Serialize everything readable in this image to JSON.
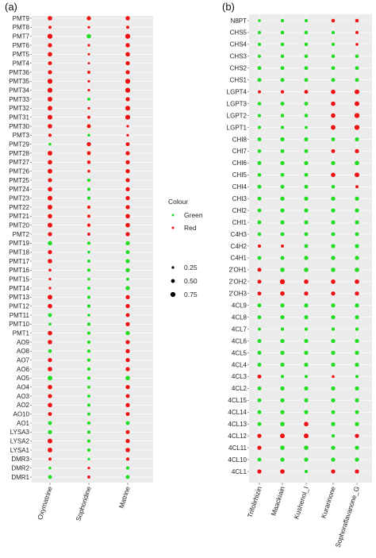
{
  "figure": {
    "panel_a_tag": "(a)",
    "panel_b_tag": "(b)"
  },
  "legend": {
    "colour_title": "Colour",
    "colour_items": [
      {
        "label": "Green",
        "color": "#22dd22"
      },
      {
        "label": "Red",
        "color": "#ee1111"
      }
    ],
    "size_items": [
      {
        "label": "0.25",
        "value": 0.25
      },
      {
        "label": "0.50",
        "value": 0.5
      },
      {
        "label": "0.75",
        "value": 0.75
      }
    ]
  },
  "colors": {
    "panel_bg": "#ebebeb",
    "grid": "#ffffff",
    "green": "#22dd22",
    "red": "#ee1111"
  },
  "chart_data": [
    {
      "type": "scatter",
      "panel": "(a)",
      "xlabel": "",
      "ylabel": "",
      "columns": [
        "Oxymatrine",
        "Sophoridine",
        "Matrine"
      ],
      "rows": [
        "PMT9",
        "PMT8",
        "PMT7",
        "PMT6",
        "PMT5",
        "PMT4",
        "PMT36",
        "PMT35",
        "PMT34",
        "PMT33",
        "PMT32",
        "PMT31",
        "PMT30",
        "PMT3",
        "PMT29",
        "PMT28",
        "PMT27",
        "PMT26",
        "PMT25",
        "PMT24",
        "PMT23",
        "PMT22",
        "PMT21",
        "PMT20",
        "PMT2",
        "PMT19",
        "PMT18",
        "PMT17",
        "PMT16",
        "PMT15",
        "PMT14",
        "PMT13",
        "PMT12",
        "PMT11",
        "PMT10",
        "PMT1",
        "AO9",
        "AO8",
        "AO7",
        "AO6",
        "AO5",
        "AO4",
        "AO3",
        "AO2",
        "AO10",
        "AO1",
        "LYSA3",
        "LYSA2",
        "LYSA1",
        "DMR3",
        "DMR2",
        "DMR1"
      ],
      "colour_codes": [
        "RRR",
        "RRR",
        "RGR",
        "RRR",
        "RRR",
        "RRR",
        "RRR",
        "RRR",
        "RRR",
        "RGR",
        "RRR",
        "RRR",
        "RRR",
        "RGR",
        "GRR",
        "RRR",
        "RRR",
        "RRR",
        "RGR",
        "RGR",
        "RGR",
        "RRR",
        "RRR",
        "RRR",
        "RRR",
        "GGG",
        "RGG",
        "RGG",
        "RGG",
        "RGG",
        "RGG",
        "RGR",
        "RGR",
        "GGR",
        "GGR",
        "RGG",
        "RGR",
        "GGR",
        "RGR",
        "RGR",
        "GGG",
        "RGR",
        "RGR",
        "RGR",
        "RGR",
        "GGG",
        "GGR",
        "RGR",
        "RGR",
        "RGR",
        "GRG",
        "GRG"
      ],
      "sizes": [
        [
          0.65,
          0.6,
          0.62
        ],
        [
          0.4,
          0.3,
          0.4
        ],
        [
          0.75,
          0.65,
          0.75
        ],
        [
          0.6,
          0.3,
          0.62
        ],
        [
          0.65,
          0.25,
          0.65
        ],
        [
          0.55,
          0.25,
          0.6
        ],
        [
          0.6,
          0.4,
          0.6
        ],
        [
          0.75,
          0.3,
          0.75
        ],
        [
          0.75,
          0.3,
          0.75
        ],
        [
          0.7,
          0.4,
          0.6
        ],
        [
          0.7,
          0.3,
          0.72
        ],
        [
          0.7,
          0.4,
          0.72
        ],
        [
          0.65,
          0.55,
          0.3
        ],
        [
          0.45,
          0.35,
          0.3
        ],
        [
          0.35,
          0.6,
          0.55
        ],
        [
          0.7,
          0.55,
          0.6
        ],
        [
          0.65,
          0.5,
          0.6
        ],
        [
          0.7,
          0.35,
          0.6
        ],
        [
          0.6,
          0.45,
          0.6
        ],
        [
          0.65,
          0.45,
          0.6
        ],
        [
          0.7,
          0.45,
          0.6
        ],
        [
          0.7,
          0.45,
          0.6
        ],
        [
          0.65,
          0.4,
          0.65
        ],
        [
          0.7,
          0.45,
          0.65
        ],
        [
          0.6,
          0.4,
          0.6
        ],
        [
          0.65,
          0.45,
          0.6
        ],
        [
          0.6,
          0.35,
          0.55
        ],
        [
          0.65,
          0.4,
          0.6
        ],
        [
          0.35,
          0.45,
          0.6
        ],
        [
          0.3,
          0.35,
          0.4
        ],
        [
          0.3,
          0.4,
          0.6
        ],
        [
          0.7,
          0.45,
          0.6
        ],
        [
          0.65,
          0.45,
          0.6
        ],
        [
          0.55,
          0.35,
          0.55
        ],
        [
          0.35,
          0.45,
          0.6
        ],
        [
          0.65,
          0.45,
          0.6
        ],
        [
          0.65,
          0.45,
          0.6
        ],
        [
          0.5,
          0.45,
          0.6
        ],
        [
          0.6,
          0.45,
          0.6
        ],
        [
          0.65,
          0.45,
          0.6
        ],
        [
          0.7,
          0.45,
          0.65
        ],
        [
          0.65,
          0.4,
          0.6
        ],
        [
          0.6,
          0.4,
          0.55
        ],
        [
          0.65,
          0.45,
          0.6
        ],
        [
          0.55,
          0.4,
          0.55
        ],
        [
          0.55,
          0.45,
          0.55
        ],
        [
          0.6,
          0.45,
          0.55
        ],
        [
          0.7,
          0.45,
          0.6
        ],
        [
          0.7,
          0.45,
          0.65
        ],
        [
          0.4,
          0.3,
          0.45
        ],
        [
          0.35,
          0.3,
          0.45
        ],
        [
          0.55,
          0.4,
          0.55
        ]
      ]
    },
    {
      "type": "scatter",
      "panel": "(b)",
      "xlabel": "",
      "ylabel": "",
      "columns": [
        "Trifolirhizin",
        "Maackiain",
        "Kushenol_I",
        "Kurarinone",
        "Sophoraflavanone_G"
      ],
      "rows": [
        "N8PT",
        "CHS5",
        "CHS4",
        "CHS3",
        "CHS2",
        "CHS1",
        "LGPT4",
        "LGPT3",
        "LGPT2",
        "LGPT1",
        "CHI8",
        "CHI7",
        "CHI6",
        "CHI5",
        "CHI4",
        "CHI3",
        "CHI2",
        "CHI1",
        "C4H3",
        "C4H2",
        "C4H1",
        "2'OH1",
        "2'OH2",
        "2'OH3",
        "4CL9",
        "4CL8",
        "4CL7",
        "4CL6",
        "4CL5",
        "4CL4",
        "4CL3",
        "4CL2",
        "4CL15",
        "4CL14",
        "4CL13",
        "4CL12",
        "4CL11",
        "4CL10",
        "4CL1"
      ],
      "colour_codes": [
        "GGGRR",
        "GGGGR",
        "GGGGR",
        "GGGGG",
        "GGGGG",
        "GGGGG",
        "RRRRR",
        "GGGRR",
        "GGGRR",
        "GGGRR",
        "GGGGG",
        "GGGRR",
        "GGGGG",
        "GGGRR",
        "GGGGR",
        "GGGGG",
        "GGGGG",
        "GGGGG",
        "GGGGG",
        "RRGGG",
        "GGGGG",
        "RGGGG",
        "RRRRR",
        "RRRRR",
        "GGGGG",
        "GGGGG",
        "GGGGG",
        "GGGGG",
        "GGGGG",
        "GGGGG",
        "RGGRG",
        "GGGGG",
        "GGGGG",
        "GGGGG",
        "GGRGG",
        "RRRGR",
        "RGGGG",
        "GGGGG",
        "RRGRR"
      ],
      "sizes": [
        [
          0.35,
          0.45,
          0.45,
          0.5,
          0.5
        ],
        [
          0.45,
          0.5,
          0.5,
          0.45,
          0.4
        ],
        [
          0.45,
          0.5,
          0.5,
          0.45,
          0.35
        ],
        [
          0.45,
          0.5,
          0.5,
          0.5,
          0.5
        ],
        [
          0.55,
          0.55,
          0.55,
          0.55,
          0.55
        ],
        [
          0.55,
          0.55,
          0.55,
          0.55,
          0.55
        ],
        [
          0.4,
          0.45,
          0.55,
          0.65,
          0.7
        ],
        [
          0.5,
          0.55,
          0.55,
          0.65,
          0.7
        ],
        [
          0.45,
          0.5,
          0.5,
          0.65,
          0.75
        ],
        [
          0.45,
          0.45,
          0.4,
          0.7,
          0.75
        ],
        [
          0.55,
          0.6,
          0.6,
          0.55,
          0.6
        ],
        [
          0.5,
          0.55,
          0.55,
          0.55,
          0.6
        ],
        [
          0.55,
          0.6,
          0.6,
          0.6,
          0.65
        ],
        [
          0.5,
          0.55,
          0.55,
          0.65,
          0.7
        ],
        [
          0.55,
          0.55,
          0.55,
          0.5,
          0.4
        ],
        [
          0.55,
          0.6,
          0.6,
          0.6,
          0.6
        ],
        [
          0.55,
          0.6,
          0.6,
          0.6,
          0.6
        ],
        [
          0.55,
          0.6,
          0.6,
          0.6,
          0.6
        ],
        [
          0.5,
          0.55,
          0.55,
          0.55,
          0.55
        ],
        [
          0.45,
          0.4,
          0.55,
          0.6,
          0.6
        ],
        [
          0.55,
          0.55,
          0.6,
          0.6,
          0.6
        ],
        [
          0.55,
          0.65,
          0.65,
          0.65,
          0.65
        ],
        [
          0.55,
          0.75,
          0.65,
          0.65,
          0.65
        ],
        [
          0.55,
          0.65,
          0.6,
          0.6,
          0.6
        ],
        [
          0.55,
          0.6,
          0.6,
          0.6,
          0.6
        ],
        [
          0.55,
          0.6,
          0.6,
          0.6,
          0.6
        ],
        [
          0.4,
          0.45,
          0.45,
          0.45,
          0.45
        ],
        [
          0.55,
          0.6,
          0.6,
          0.6,
          0.6
        ],
        [
          0.55,
          0.6,
          0.6,
          0.6,
          0.6
        ],
        [
          0.55,
          0.6,
          0.6,
          0.6,
          0.6
        ],
        [
          0.55,
          0.45,
          0.45,
          0.35,
          0.45
        ],
        [
          0.55,
          0.6,
          0.6,
          0.6,
          0.6
        ],
        [
          0.55,
          0.6,
          0.6,
          0.6,
          0.6
        ],
        [
          0.55,
          0.6,
          0.6,
          0.55,
          0.55
        ],
        [
          0.55,
          0.65,
          0.65,
          0.6,
          0.6
        ],
        [
          0.6,
          0.7,
          0.7,
          0.45,
          0.6
        ],
        [
          0.6,
          0.65,
          0.65,
          0.6,
          0.6
        ],
        [
          0.55,
          0.6,
          0.6,
          0.6,
          0.6
        ],
        [
          0.6,
          0.65,
          0.45,
          0.6,
          0.6
        ]
      ]
    }
  ]
}
